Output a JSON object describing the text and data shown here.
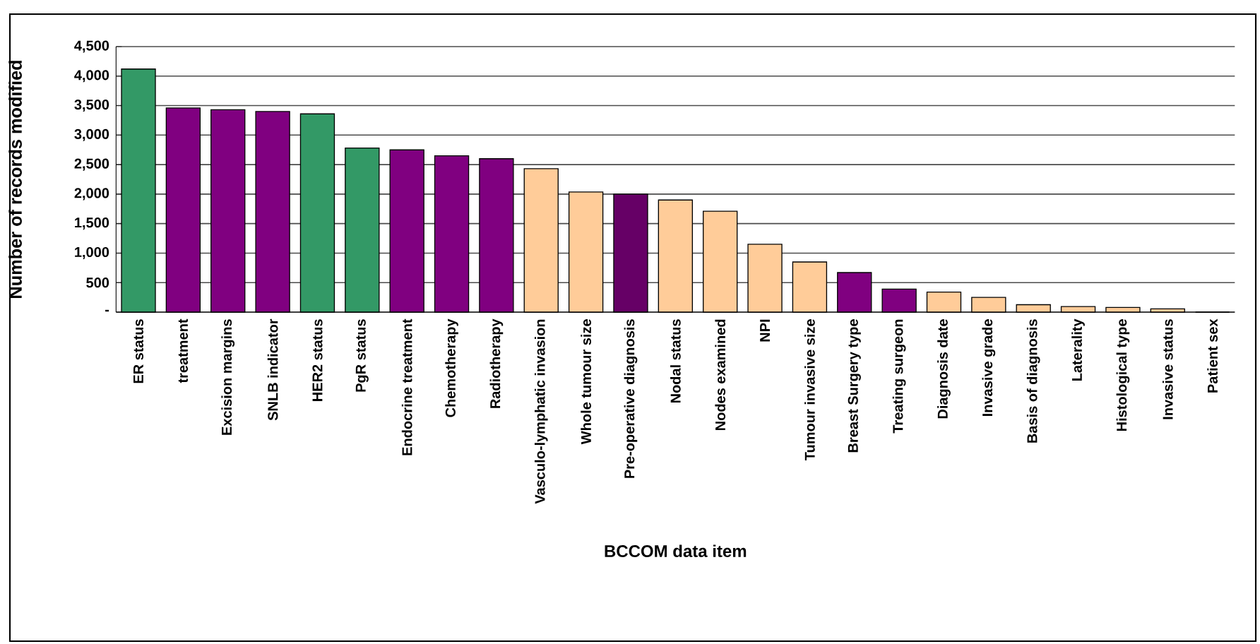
{
  "chart_data": {
    "type": "bar",
    "xlabel": "BCCOM data item",
    "ylabel": "Number of records modified",
    "categories": [
      "ER status",
      "treatment",
      "Excision margins",
      "SNLB indicator",
      "HER2 status",
      "PgR status",
      "Endocrine treatment",
      "Chemotherapy",
      "Radiotherapy",
      "Vasculo-lymphatic invasion",
      "Whole tumour size",
      "Pre-operative diagnosis",
      "Nodal status",
      "Nodes examined",
      "NPI",
      "Tumour invasive size",
      "Breast Surgery type",
      "Treating surgeon",
      "Diagnosis date",
      "Invasive grade",
      "Basis of diagnosis",
      "Laterality",
      "Histological type",
      "Invasive status",
      "Patient sex"
    ],
    "values": [
      4120,
      3460,
      3430,
      3400,
      3360,
      2780,
      2750,
      2650,
      2600,
      2430,
      2035,
      2000,
      1900,
      1710,
      1150,
      850,
      670,
      390,
      340,
      250,
      125,
      95,
      80,
      55,
      0
    ],
    "colors": [
      "#339966",
      "#800080",
      "#800080",
      "#800080",
      "#339966",
      "#339966",
      "#800080",
      "#800080",
      "#800080",
      "#ffcc99",
      "#ffcc99",
      "#660066",
      "#ffcc99",
      "#ffcc99",
      "#ffcc99",
      "#ffcc99",
      "#800080",
      "#800080",
      "#ffcc99",
      "#ffcc99",
      "#ffcc99",
      "#ffcc99",
      "#ffcc99",
      "#ffcc99",
      "#ffcc99"
    ],
    "ylim": [
      0,
      4500
    ],
    "yticks": [
      {
        "value": 0,
        "label": "-"
      },
      {
        "value": 500,
        "label": "500"
      },
      {
        "value": 1000,
        "label": "1,000"
      },
      {
        "value": 1500,
        "label": "1,500"
      },
      {
        "value": 2000,
        "label": "2,000"
      },
      {
        "value": 2500,
        "label": "2,500"
      },
      {
        "value": 3000,
        "label": "3,000"
      },
      {
        "value": 3500,
        "label": "3,500"
      },
      {
        "value": 4000,
        "label": "4,000"
      },
      {
        "value": 4500,
        "label": "4,500"
      }
    ],
    "grid": "y"
  }
}
